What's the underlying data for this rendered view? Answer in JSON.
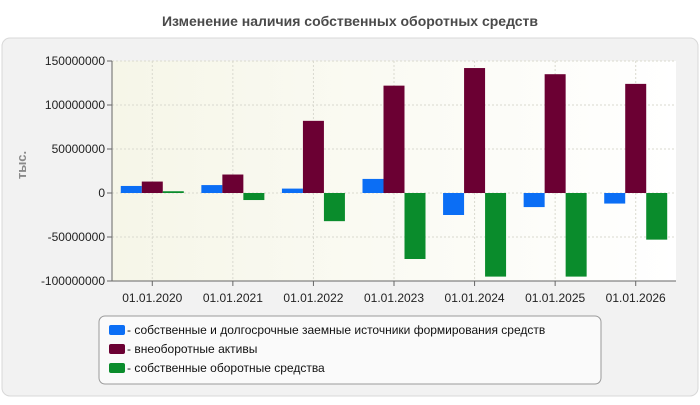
{
  "chart_data": {
    "type": "bar",
    "title": "Изменение наличия собственных оборотных средств",
    "ylabel": "тыс.",
    "xlabel": "",
    "categories": [
      "01.01.2020",
      "01.01.2021",
      "01.01.2022",
      "01.01.2023",
      "01.01.2024",
      "01.01.2025",
      "01.01.2026"
    ],
    "ylim": [
      -100000000,
      150000000
    ],
    "yticks": [
      150000000,
      100000000,
      50000000,
      0,
      -50000000,
      -100000000
    ],
    "ytick_labels": [
      "150000000",
      "100000000",
      "50000000",
      "0",
      "-50000000",
      "-100000000"
    ],
    "grid": true,
    "legend_position": "bottom",
    "series": [
      {
        "name": "- собственные и долгосрочные заемные источники формирования средств",
        "color": "#0b6ef5",
        "values": [
          8000000,
          9000000,
          5000000,
          16000000,
          -25000000,
          -16000000,
          -12000000
        ]
      },
      {
        "name": "- внеоборотные активы",
        "color": "#6b0033",
        "values": [
          13000000,
          21000000,
          82000000,
          122000000,
          142000000,
          135000000,
          124000000
        ]
      },
      {
        "name": "- собственные оборотные средства",
        "color": "#0a8c2c",
        "values": [
          2000000,
          -8000000,
          -32000000,
          -75000000,
          -95000000,
          -95000000,
          -53000000
        ]
      }
    ]
  }
}
